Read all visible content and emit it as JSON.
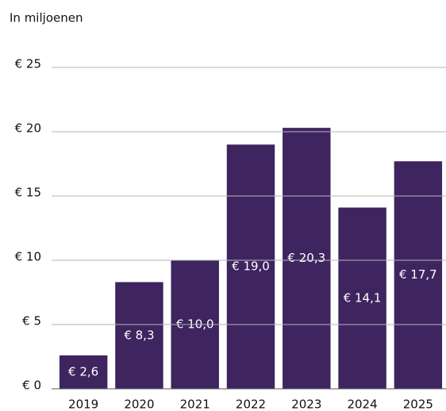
{
  "chart_data": {
    "type": "bar",
    "y_label": "In miljoenen",
    "categories": [
      "2019",
      "2020",
      "2021",
      "2022",
      "2023",
      "2024",
      "2025"
    ],
    "values": [
      2.6,
      8.3,
      10.0,
      19.0,
      20.3,
      14.1,
      17.7
    ],
    "value_labels": [
      "€ 2,6",
      "€ 8,3",
      "€ 10,0",
      "€ 19,0",
      "€ 20,3",
      "€ 14,1",
      "€ 17,7"
    ],
    "color": "#3e2560",
    "ylim": [
      0,
      25
    ],
    "yticks": [
      {
        "value": 0,
        "label": "€ 0"
      },
      {
        "value": 5,
        "label": "€ 5"
      },
      {
        "value": 10,
        "label": "€ 10"
      },
      {
        "value": 15,
        "label": "€ 15"
      },
      {
        "value": 20,
        "label": "€ 20"
      },
      {
        "value": 25,
        "label": "€ 25"
      }
    ],
    "grid": true
  }
}
